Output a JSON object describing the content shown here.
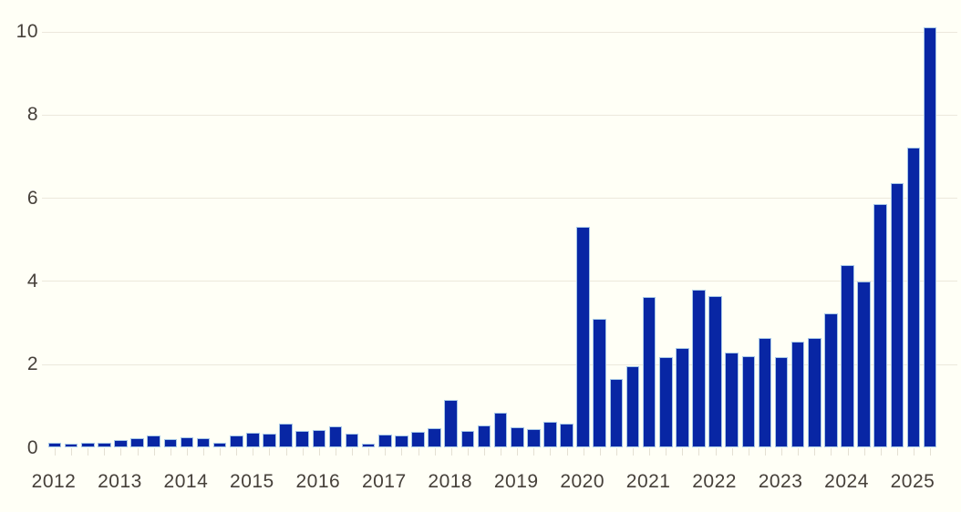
{
  "chart": {
    "background_color": "#FFFFF6",
    "bar_color": "#0826A4",
    "bar_edge_color": "#A6C7E7",
    "grid_color": "#ECE8DC",
    "axis_tick_color": "#E4E0D3",
    "label_color": "#46403A"
  },
  "chart_data": {
    "type": "bar",
    "title": "",
    "xlabel": "",
    "ylabel": "",
    "legend": "none",
    "grid": "horizontal gridlines at y ticks, very faint",
    "ylim": [
      0,
      10.3
    ],
    "y_ticks": [
      0,
      2,
      4,
      6,
      8,
      10
    ],
    "year_labels": [
      "2012",
      "2013",
      "2014",
      "2015",
      "2016",
      "2017",
      "2018",
      "2019",
      "2020",
      "2021",
      "2022",
      "2023",
      "2024",
      "2025"
    ],
    "categories": [
      "2012 Q1",
      "2012 Q2",
      "2012 Q3",
      "2012 Q4",
      "2013 Q1",
      "2013 Q2",
      "2013 Q3",
      "2013 Q4",
      "2014 Q1",
      "2014 Q2",
      "2014 Q3",
      "2014 Q4",
      "2015 Q1",
      "2015 Q2",
      "2015 Q3",
      "2015 Q4",
      "2016 Q1",
      "2016 Q2",
      "2016 Q3",
      "2016 Q4",
      "2017 Q1",
      "2017 Q2",
      "2017 Q3",
      "2017 Q4",
      "2018 Q1",
      "2018 Q2",
      "2018 Q3",
      "2018 Q4",
      "2019 Q1",
      "2019 Q2",
      "2019 Q3",
      "2019 Q4",
      "2020 Q1",
      "2020 Q2",
      "2020 Q3",
      "2020 Q4",
      "2021 Q1",
      "2021 Q2",
      "2021 Q3",
      "2021 Q4",
      "2022 Q1",
      "2022 Q2",
      "2022 Q3",
      "2022 Q4",
      "2023 Q1",
      "2023 Q2",
      "2023 Q3",
      "2023 Q4",
      "2024 Q1",
      "2024 Q2",
      "2024 Q3",
      "2024 Q4",
      "2025 Q1",
      "2025 Q2"
    ],
    "values": [
      0.12,
      0.08,
      0.1,
      0.12,
      0.17,
      0.23,
      0.29,
      0.2,
      0.25,
      0.21,
      0.12,
      0.28,
      0.35,
      0.32,
      0.58,
      0.39,
      0.42,
      0.5,
      0.32,
      0.08,
      0.3,
      0.28,
      0.38,
      0.47,
      1.15,
      0.4,
      0.52,
      0.83,
      0.48,
      0.43,
      0.61,
      0.57,
      5.3,
      3.08,
      1.64,
      1.94,
      3.62,
      2.16,
      2.38,
      3.78,
      3.64,
      2.28,
      2.18,
      2.62,
      2.16,
      2.54,
      2.63,
      3.23,
      4.38,
      3.98,
      5.85,
      6.35,
      7.2,
      10.1
    ]
  }
}
